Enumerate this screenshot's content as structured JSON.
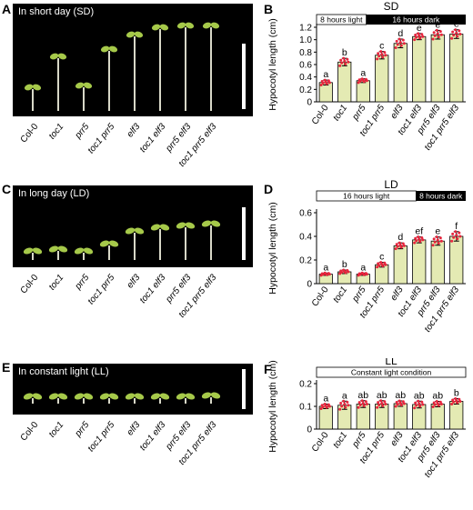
{
  "genotypes": [
    "Col-0",
    "toc1",
    "prr5",
    "toc1 prr5",
    "elf3",
    "toc1 elf3",
    "prr5 elf3",
    "toc1 prr5 elf3"
  ],
  "panels": {
    "A": {
      "letter": "A",
      "caption": "In short day (SD)"
    },
    "B": {
      "letter": "B"
    },
    "C": {
      "letter": "C",
      "caption": "In long day (LD)"
    },
    "D": {
      "letter": "D"
    },
    "E": {
      "letter": "E",
      "caption": "In constant light (LL)"
    },
    "F": {
      "letter": "F"
    }
  },
  "colors": {
    "bar": "#e4eab3",
    "point": "#e8243c",
    "dark": "#000000",
    "photo_bg": "#000000",
    "seedling": "#a6c94a"
  },
  "chart_data": [
    {
      "type": "bar",
      "title": "SD",
      "ylabel": "Hypocotyl length (cm)",
      "categories": [
        "Col-0",
        "toc1",
        "prr5",
        "toc1 prr5",
        "elf3",
        "toc1 elf3",
        "prr5 elf3",
        "toc1 prr5 elf3"
      ],
      "values": [
        0.31,
        0.64,
        0.34,
        0.75,
        0.94,
        1.05,
        1.08,
        1.09
      ],
      "errors": [
        0.04,
        0.06,
        0.03,
        0.06,
        0.07,
        0.05,
        0.07,
        0.07
      ],
      "letters": [
        "a",
        "b",
        "a",
        "c",
        "d",
        "e",
        "e",
        "e"
      ],
      "ylim": [
        0,
        1.2
      ],
      "yticks": [
        0,
        0.2,
        0.4,
        0.6,
        0.8,
        1.0,
        1.2
      ],
      "ytick_labels": [
        "0",
        "0.2",
        "0.4",
        "0.6",
        "0.8",
        "1.0",
        "1.2"
      ],
      "light_bar": {
        "light_label": "8 hours light",
        "dark_label": "16 hours dark",
        "light_fraction": 0.333
      }
    },
    {
      "type": "bar",
      "title": "LD",
      "ylabel": "Hypocotyl length (cm)",
      "categories": [
        "Col-0",
        "toc1",
        "prr5",
        "toc1 prr5",
        "elf3",
        "toc1 elf3",
        "prr5 elf3",
        "toc1 prr5 elf3"
      ],
      "values": [
        0.08,
        0.1,
        0.08,
        0.16,
        0.32,
        0.37,
        0.36,
        0.4
      ],
      "errors": [
        0.01,
        0.015,
        0.01,
        0.02,
        0.025,
        0.025,
        0.035,
        0.04
      ],
      "letters": [
        "a",
        "b",
        "a",
        "c",
        "d",
        "ef",
        "e",
        "f"
      ],
      "ylim": [
        0,
        0.6
      ],
      "yticks": [
        0,
        0.2,
        0.4,
        0.6
      ],
      "ytick_labels": [
        "0",
        "0.2",
        "0.4",
        "0.6"
      ],
      "light_bar": {
        "light_label": "16 hours light",
        "dark_label": "8 hours dark",
        "light_fraction": 0.667
      }
    },
    {
      "type": "bar",
      "title": "LL",
      "ylabel": "Hypocotyl length (cm)",
      "categories": [
        "Col-0",
        "toc1",
        "prr5",
        "toc1 prr5",
        "elf3",
        "toc1 elf3",
        "prr5 elf3",
        "toc1 prr5 elf3"
      ],
      "values": [
        0.1,
        0.105,
        0.11,
        0.11,
        0.112,
        0.108,
        0.11,
        0.122
      ],
      "errors": [
        0.01,
        0.018,
        0.015,
        0.015,
        0.012,
        0.015,
        0.012,
        0.012
      ],
      "letters": [
        "a",
        "a",
        "ab",
        "ab",
        "ab",
        "ab",
        "ab",
        "b"
      ],
      "ylim": [
        0,
        0.2
      ],
      "yticks": [
        0,
        0.1,
        0.2
      ],
      "ytick_labels": [
        "0",
        "0.1",
        "0.2"
      ],
      "light_bar": {
        "light_label": "Constant light condition",
        "dark_label": "",
        "light_fraction": 1.0
      }
    }
  ]
}
